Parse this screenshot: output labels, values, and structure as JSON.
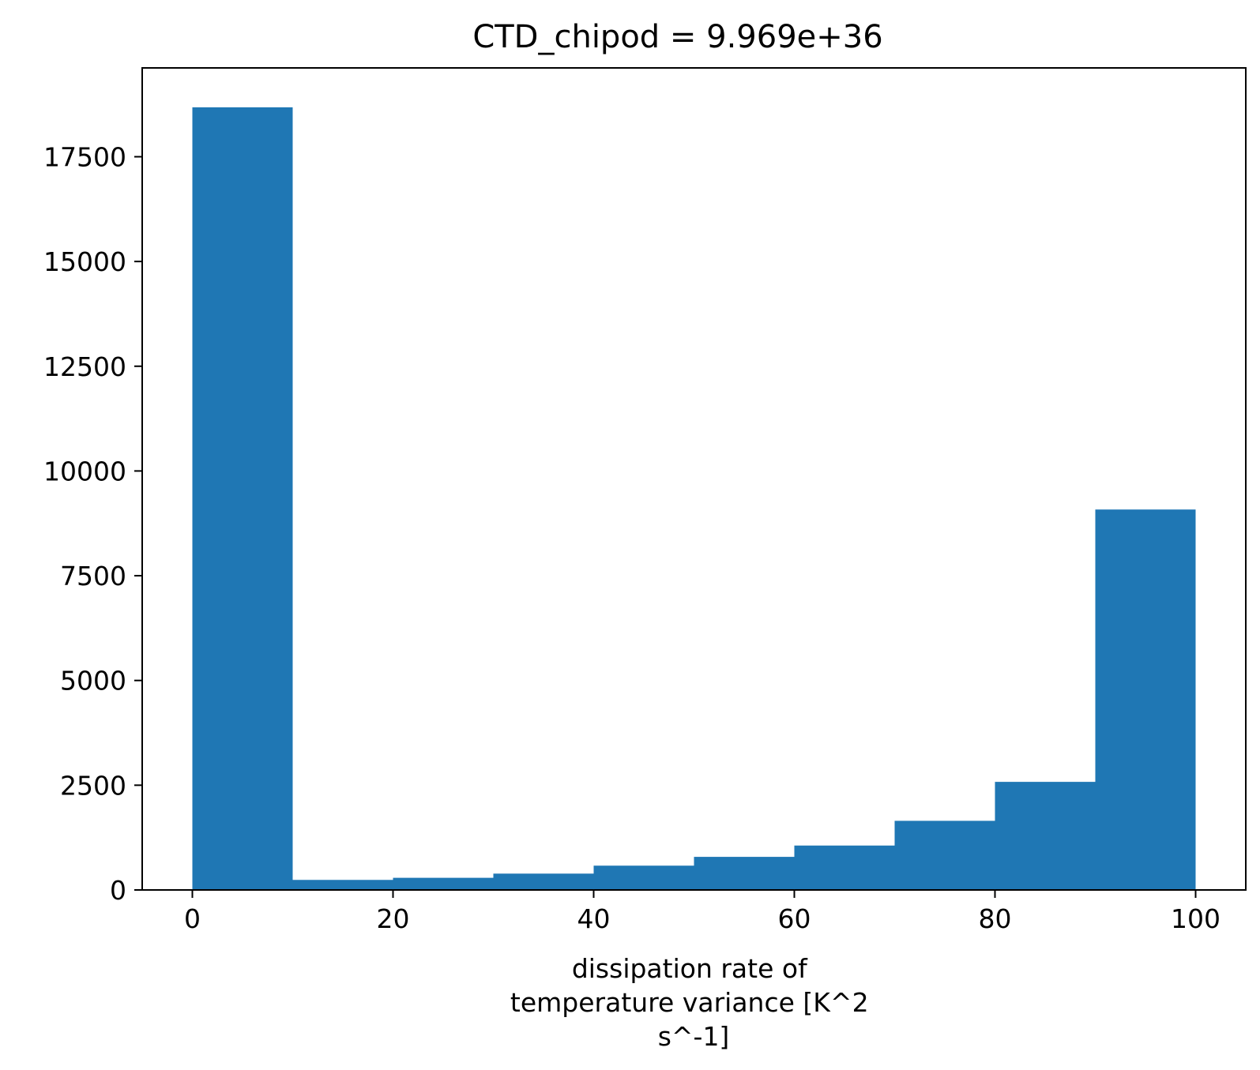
{
  "chart_data": {
    "type": "bar",
    "title": "CTD_chipod = 9.969e+36",
    "xlabel_lines": [
      "dissipation rate of",
      "temperature variance [K^2",
      "s^-1]"
    ],
    "ylabel": "",
    "bins": [
      {
        "x0": 0,
        "x1": 10,
        "value": 18680
      },
      {
        "x0": 10,
        "x1": 20,
        "value": 240
      },
      {
        "x0": 20,
        "x1": 30,
        "value": 290
      },
      {
        "x0": 30,
        "x1": 40,
        "value": 390
      },
      {
        "x0": 40,
        "x1": 50,
        "value": 580
      },
      {
        "x0": 50,
        "x1": 60,
        "value": 790
      },
      {
        "x0": 60,
        "x1": 70,
        "value": 1060
      },
      {
        "x0": 70,
        "x1": 80,
        "value": 1650
      },
      {
        "x0": 80,
        "x1": 90,
        "value": 2580
      },
      {
        "x0": 90,
        "x1": 100,
        "value": 9080
      }
    ],
    "xlim": [
      -5,
      105
    ],
    "ylim": [
      0,
      19620
    ],
    "xticks": [
      0,
      20,
      40,
      60,
      80,
      100
    ],
    "yticks": [
      0,
      2500,
      5000,
      7500,
      10000,
      12500,
      15000,
      17500
    ],
    "grid": false,
    "legend": "none",
    "colors": {
      "bar": "#1f77b4",
      "axis": "#000000",
      "background": "#ffffff"
    }
  }
}
